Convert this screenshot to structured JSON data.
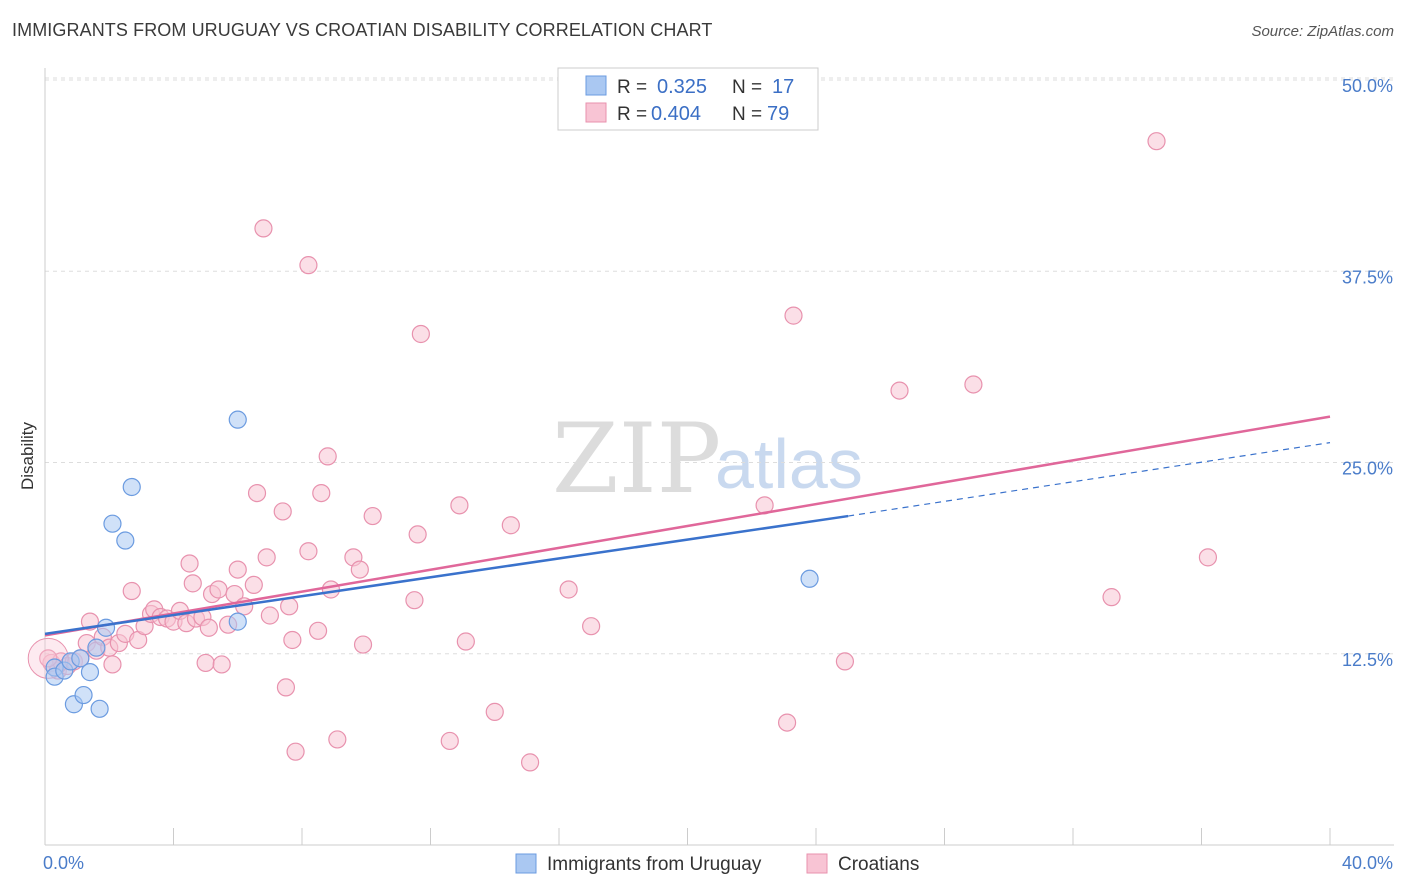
{
  "header": {
    "title": "IMMIGRANTS FROM URUGUAY VS CROATIAN DISABILITY CORRELATION CHART",
    "source": "Source: ZipAtlas.com"
  },
  "watermark": {
    "zip": "ZIP",
    "atlas": "atlas"
  },
  "legend": {
    "r_label": "R =",
    "n_label": "N =",
    "series": [
      {
        "r": "0.325",
        "n": "17",
        "color": "#9dbfee"
      },
      {
        "r": "0.404",
        "n": "79",
        "color": "#f5b8cb"
      }
    ]
  },
  "colors": {
    "uruguay_fill": "#aac8f2",
    "uruguay_stroke": "#6b9be0",
    "uruguay_line": "#3a72cc",
    "croatian_fill": "#f8c4d4",
    "croatian_stroke": "#e892ae",
    "croatian_line": "#e0679a",
    "grid": "#dddddd",
    "tick_label": "#4a7cc9"
  },
  "chart_data": {
    "type": "scatter",
    "title": "IMMIGRANTS FROM URUGUAY VS CROATIAN DISABILITY CORRELATION CHART",
    "xlabel": "",
    "ylabel": "Disability",
    "xlim": [
      0,
      40
    ],
    "ylim": [
      0,
      50
    ],
    "x_tick_labels": [
      "0.0%",
      "40.0%"
    ],
    "y_ticks": [
      12.5,
      25.0,
      37.5,
      50.0
    ],
    "y_tick_labels": [
      "12.5%",
      "25.0%",
      "37.5%",
      "50.0%"
    ],
    "grid": true,
    "legend_position": "top-center",
    "series": [
      {
        "name": "Immigrants from Uruguay",
        "r": 0.325,
        "n": 17,
        "trend": {
          "x0": 0,
          "y0": 13.8,
          "x1": 25,
          "y1": 21.5,
          "dash_to_x": 40,
          "dash_to_y": 26.3
        },
        "points": [
          [
            0.3,
            11.6
          ],
          [
            0.3,
            11.0
          ],
          [
            0.6,
            11.4
          ],
          [
            0.8,
            12.0
          ],
          [
            0.9,
            9.2
          ],
          [
            1.1,
            12.2
          ],
          [
            1.2,
            9.8
          ],
          [
            1.4,
            11.3
          ],
          [
            1.6,
            12.9
          ],
          [
            1.7,
            8.9
          ],
          [
            1.9,
            14.2
          ],
          [
            2.1,
            21.0
          ],
          [
            2.5,
            19.9
          ],
          [
            2.7,
            23.4
          ],
          [
            6.0,
            27.8
          ],
          [
            6.0,
            14.6
          ],
          [
            23.8,
            17.4
          ]
        ]
      },
      {
        "name": "Croatians",
        "r": 0.404,
        "n": 79,
        "trend": {
          "x0": 0,
          "y0": 13.7,
          "x1": 40,
          "y1": 28.0
        },
        "points": [
          [
            0.2,
            11.9
          ],
          [
            0.4,
            11.4
          ],
          [
            0.5,
            12.0
          ],
          [
            0.7,
            11.7
          ],
          [
            0.9,
            12.0
          ],
          [
            1.1,
            12.2
          ],
          [
            1.3,
            13.2
          ],
          [
            1.4,
            14.6
          ],
          [
            1.6,
            12.7
          ],
          [
            1.8,
            13.6
          ],
          [
            2.0,
            12.9
          ],
          [
            2.1,
            11.8
          ],
          [
            2.3,
            13.2
          ],
          [
            2.5,
            13.8
          ],
          [
            2.7,
            16.6
          ],
          [
            2.9,
            13.4
          ],
          [
            3.1,
            14.3
          ],
          [
            3.3,
            15.1
          ],
          [
            3.4,
            15.4
          ],
          [
            3.6,
            14.9
          ],
          [
            3.8,
            14.8
          ],
          [
            4.0,
            14.6
          ],
          [
            4.2,
            15.3
          ],
          [
            4.4,
            14.5
          ],
          [
            4.5,
            18.4
          ],
          [
            4.6,
            17.1
          ],
          [
            4.7,
            14.8
          ],
          [
            4.9,
            14.9
          ],
          [
            5.0,
            11.9
          ],
          [
            5.1,
            14.2
          ],
          [
            5.2,
            16.4
          ],
          [
            5.4,
            16.7
          ],
          [
            5.5,
            11.8
          ],
          [
            5.7,
            14.4
          ],
          [
            5.9,
            16.4
          ],
          [
            6.0,
            18.0
          ],
          [
            6.2,
            15.6
          ],
          [
            6.5,
            17.0
          ],
          [
            6.6,
            23.0
          ],
          [
            6.8,
            40.3
          ],
          [
            6.9,
            18.8
          ],
          [
            7.0,
            15.0
          ],
          [
            7.4,
            21.8
          ],
          [
            7.5,
            10.3
          ],
          [
            7.6,
            15.6
          ],
          [
            7.7,
            13.4
          ],
          [
            7.8,
            6.1
          ],
          [
            8.2,
            37.9
          ],
          [
            8.2,
            19.2
          ],
          [
            8.5,
            14.0
          ],
          [
            8.6,
            23.0
          ],
          [
            8.8,
            25.4
          ],
          [
            8.9,
            16.7
          ],
          [
            9.1,
            6.9
          ],
          [
            9.6,
            18.8
          ],
          [
            9.8,
            18.0
          ],
          [
            9.9,
            13.1
          ],
          [
            10.2,
            21.5
          ],
          [
            11.5,
            16.0
          ],
          [
            11.6,
            20.3
          ],
          [
            11.7,
            33.4
          ],
          [
            12.6,
            6.8
          ],
          [
            12.9,
            22.2
          ],
          [
            13.1,
            13.3
          ],
          [
            14.0,
            8.7
          ],
          [
            14.5,
            20.9
          ],
          [
            15.1,
            5.4
          ],
          [
            16.3,
            16.7
          ],
          [
            17.0,
            14.3
          ],
          [
            22.4,
            22.2
          ],
          [
            23.1,
            8.0
          ],
          [
            23.3,
            34.6
          ],
          [
            24.9,
            12.0
          ],
          [
            26.6,
            29.7
          ],
          [
            28.9,
            30.1
          ],
          [
            33.2,
            16.2
          ],
          [
            34.6,
            46.0
          ],
          [
            36.2,
            18.8
          ],
          [
            0.1,
            12.2
          ]
        ]
      }
    ]
  },
  "bottom_legend": {
    "items": [
      {
        "label": "Immigrants from Uruguay"
      },
      {
        "label": "Croatians"
      }
    ]
  }
}
